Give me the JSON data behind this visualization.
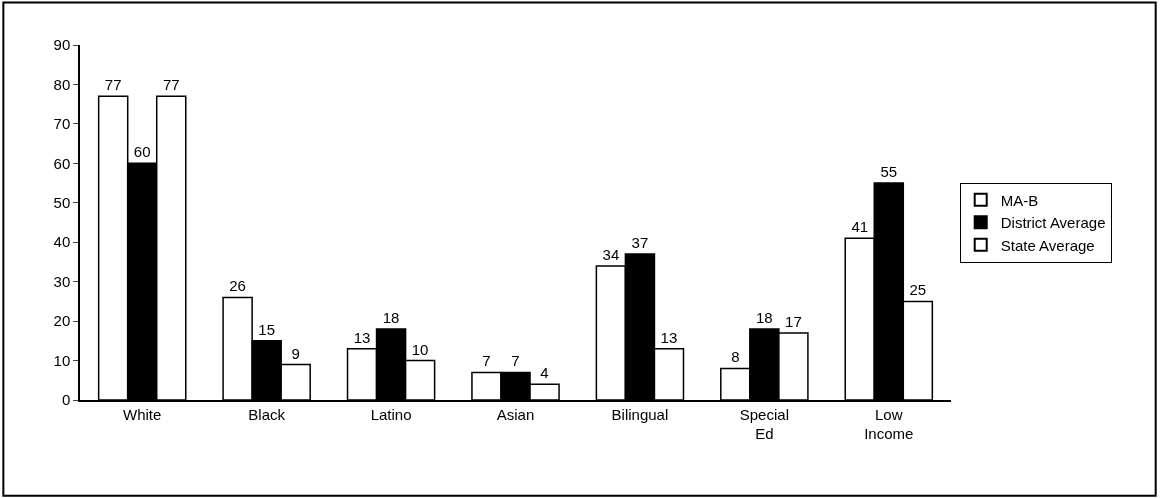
{
  "chart_data": {
    "type": "bar",
    "categories": [
      "White",
      "Black",
      "Latino",
      "Asian",
      "Bilingual",
      "Special Ed",
      "Low Income"
    ],
    "series": [
      {
        "name": "MA-B",
        "color": "#ffffff",
        "values": [
          77,
          26,
          13,
          7,
          34,
          8,
          41
        ]
      },
      {
        "name": "District Average",
        "color": "#000000",
        "values": [
          60,
          15,
          18,
          7,
          37,
          18,
          55
        ]
      },
      {
        "name": "State Average",
        "color": "#ffffff",
        "values": [
          77,
          9,
          10,
          4,
          13,
          17,
          25
        ]
      }
    ],
    "ylim": [
      0,
      90
    ],
    "yticks": [
      0,
      10,
      20,
      30,
      40,
      50,
      60,
      70,
      80,
      90
    ],
    "data_labels": true,
    "legend": "right"
  }
}
